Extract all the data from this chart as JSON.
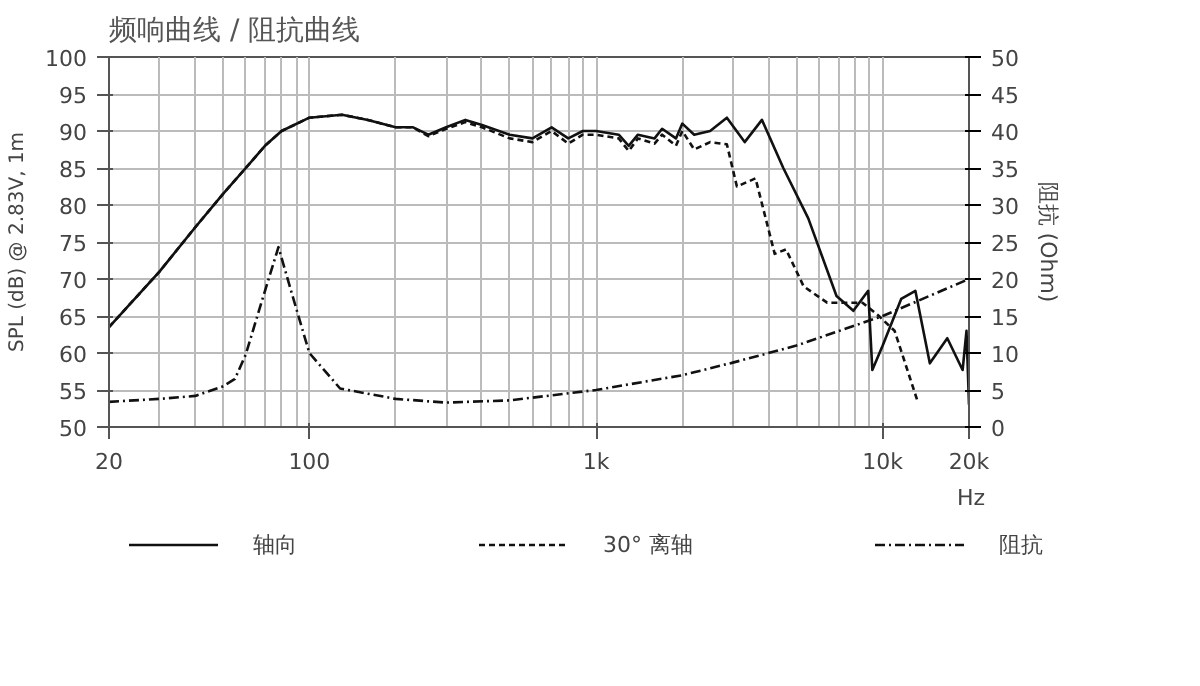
{
  "chart_data": {
    "type": "line",
    "title": "频响曲线 / 阻抗曲线",
    "xlabel": "Hz",
    "ylabel": "SPL (dB) @ 2.83V, 1m",
    "y2label": "阻抗 (Ohm)",
    "log": "x",
    "xlim": [
      20,
      20000
    ],
    "xticks": [
      20,
      100,
      {
        "value": 1000,
        "label": "1k"
      },
      {
        "value": 10000,
        "label": "10k"
      },
      {
        "value": 20000,
        "label": "20k"
      }
    ],
    "ylim": [
      50,
      100
    ],
    "yticks": [
      50,
      55,
      60,
      65,
      70,
      75,
      80,
      85,
      90,
      95,
      100
    ],
    "y2lim": [
      0,
      50
    ],
    "y2ticks": [
      0,
      5,
      10,
      15,
      20,
      25,
      30,
      35,
      40,
      45,
      50
    ],
    "grid": true,
    "legend": "bottom",
    "series": [
      {
        "name": "轴向",
        "color": "#111111",
        "line_style": "solid",
        "x": [
          20,
          30,
          40,
          50,
          60,
          70,
          80,
          100,
          130,
          160,
          200,
          230,
          260,
          300,
          350,
          400,
          500,
          600,
          700,
          800,
          900,
          1000,
          1200,
          1300,
          1400,
          1600,
          1700,
          1900,
          2000,
          2200,
          2500,
          2860,
          3300,
          3790,
          4500,
          5500,
          6900,
          7900,
          8900,
          9200,
          10000,
          11600,
          13000,
          14600,
          16800,
          19000,
          19600,
          20000
        ],
        "values": [
          63.5,
          71,
          77,
          81.5,
          85,
          88,
          90,
          91.8,
          92.2,
          91.5,
          90.5,
          90.5,
          89.5,
          90.5,
          91.5,
          90.8,
          89.5,
          89,
          90.5,
          89,
          90,
          90,
          89.5,
          88,
          89.5,
          89,
          90.3,
          89,
          91,
          89.5,
          90,
          91.8,
          88.5,
          91.5,
          85,
          78.2,
          67.7,
          65.7,
          68.4,
          57.7,
          61,
          67.3,
          68.4,
          58.6,
          62,
          57.7,
          63,
          53
        ]
      },
      {
        "name": "30° 离轴",
        "color": "#111111",
        "line_style": "dashed",
        "x": [
          20,
          30,
          40,
          50,
          60,
          70,
          80,
          100,
          130,
          160,
          200,
          230,
          260,
          300,
          350,
          400,
          500,
          600,
          700,
          800,
          900,
          1000,
          1200,
          1300,
          1400,
          1600,
          1700,
          1900,
          2000,
          2200,
          2500,
          2860,
          3100,
          3600,
          4200,
          4600,
          5300,
          6400,
          8500,
          9700,
          11000,
          13200
        ],
        "values": [
          63.5,
          71,
          77,
          81.5,
          85,
          88,
          90,
          91.8,
          92.2,
          91.5,
          90.5,
          90.5,
          89.3,
          90.3,
          91.2,
          90.5,
          89,
          88.5,
          90,
          88.3,
          89.5,
          89.5,
          89,
          87.3,
          89,
          88.3,
          89.5,
          88,
          90,
          87.5,
          88.5,
          88.2,
          82.5,
          83.6,
          73.4,
          74,
          69,
          66.8,
          66.8,
          65,
          63,
          53.6
        ]
      },
      {
        "name": "阻抗",
        "color": "#111111",
        "line_style": "dashdot",
        "axis": "y2",
        "x": [
          20,
          30,
          40,
          50,
          55,
          60,
          68,
          78,
          90,
          100,
          128,
          200,
          300,
          500,
          1000,
          2000,
          3000,
          5000,
          10000,
          20000
        ],
        "values": [
          3.4,
          3.8,
          4.2,
          5.5,
          6.5,
          9.8,
          16.8,
          24.3,
          16,
          10,
          5.2,
          3.8,
          3.3,
          3.6,
          5,
          7,
          8.7,
          11,
          15,
          20
        ]
      }
    ]
  }
}
